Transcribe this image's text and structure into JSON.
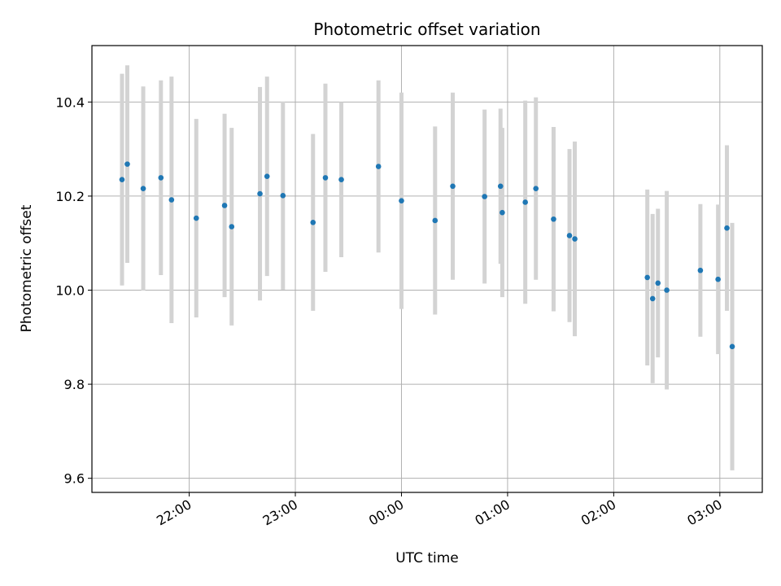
{
  "chart_data": {
    "type": "scatter",
    "title": "Photometric offset variation",
    "xlabel": "UTC time",
    "ylabel": "Photometric offset",
    "x_axis_kind": "time",
    "xlim": [
      "21:05",
      "03:24"
    ],
    "ylim": [
      9.57,
      10.52
    ],
    "yticks": [
      9.6,
      9.8,
      10.0,
      10.2,
      10.4
    ],
    "ytick_labels": [
      "9.6",
      "9.8",
      "10.0",
      "10.2",
      "10.4"
    ],
    "xticks": [
      "22:00",
      "23:00",
      "00:00",
      "01:00",
      "02:00",
      "03:00"
    ],
    "grid": true,
    "legend": "none",
    "colors": {
      "point": "#1f77b4",
      "errorbar": "#d3d3d3",
      "grid": "#b0b0b0"
    },
    "points": [
      {
        "x": "21:22",
        "y": 10.235,
        "err": 0.225
      },
      {
        "x": "21:25",
        "y": 10.268,
        "err": 0.21
      },
      {
        "x": "21:34",
        "y": 10.216,
        "err": 0.217
      },
      {
        "x": "21:44",
        "y": 10.239,
        "err": 0.207
      },
      {
        "x": "21:50",
        "y": 10.192,
        "err": 0.262
      },
      {
        "x": "22:04",
        "y": 10.153,
        "err": 0.211
      },
      {
        "x": "22:20",
        "y": 10.18,
        "err": 0.195
      },
      {
        "x": "22:24",
        "y": 10.135,
        "err": 0.21
      },
      {
        "x": "22:40",
        "y": 10.205,
        "err": 0.227
      },
      {
        "x": "22:44",
        "y": 10.242,
        "err": 0.212
      },
      {
        "x": "22:53",
        "y": 10.201,
        "err": 0.2
      },
      {
        "x": "23:10",
        "y": 10.144,
        "err": 0.188
      },
      {
        "x": "23:17",
        "y": 10.239,
        "err": 0.2
      },
      {
        "x": "23:26",
        "y": 10.235,
        "err": 0.165
      },
      {
        "x": "23:47",
        "y": 10.263,
        "err": 0.183
      },
      {
        "x": "00:00",
        "y": 10.19,
        "err": 0.23
      },
      {
        "x": "00:19",
        "y": 10.148,
        "err": 0.2
      },
      {
        "x": "00:29",
        "y": 10.221,
        "err": 0.199
      },
      {
        "x": "00:47",
        "y": 10.199,
        "err": 0.185
      },
      {
        "x": "00:56",
        "y": 10.221,
        "err": 0.165
      },
      {
        "x": "00:57",
        "y": 10.165,
        "err": 0.18
      },
      {
        "x": "01:10",
        "y": 10.187,
        "err": 0.216
      },
      {
        "x": "01:16",
        "y": 10.216,
        "err": 0.194
      },
      {
        "x": "01:26",
        "y": 10.151,
        "err": 0.196
      },
      {
        "x": "01:35",
        "y": 10.116,
        "err": 0.184
      },
      {
        "x": "01:38",
        "y": 10.109,
        "err": 0.207
      },
      {
        "x": "02:19",
        "y": 10.027,
        "err": 0.187
      },
      {
        "x": "02:22",
        "y": 9.982,
        "err": 0.18
      },
      {
        "x": "02:25",
        "y": 10.015,
        "err": 0.158
      },
      {
        "x": "02:30",
        "y": 10.0,
        "err": 0.211
      },
      {
        "x": "02:49",
        "y": 10.042,
        "err": 0.141
      },
      {
        "x": "02:59",
        "y": 10.023,
        "err": 0.159
      },
      {
        "x": "03:04",
        "y": 10.132,
        "err": 0.176
      },
      {
        "x": "03:07",
        "y": 9.88,
        "err": 0.263
      }
    ]
  }
}
